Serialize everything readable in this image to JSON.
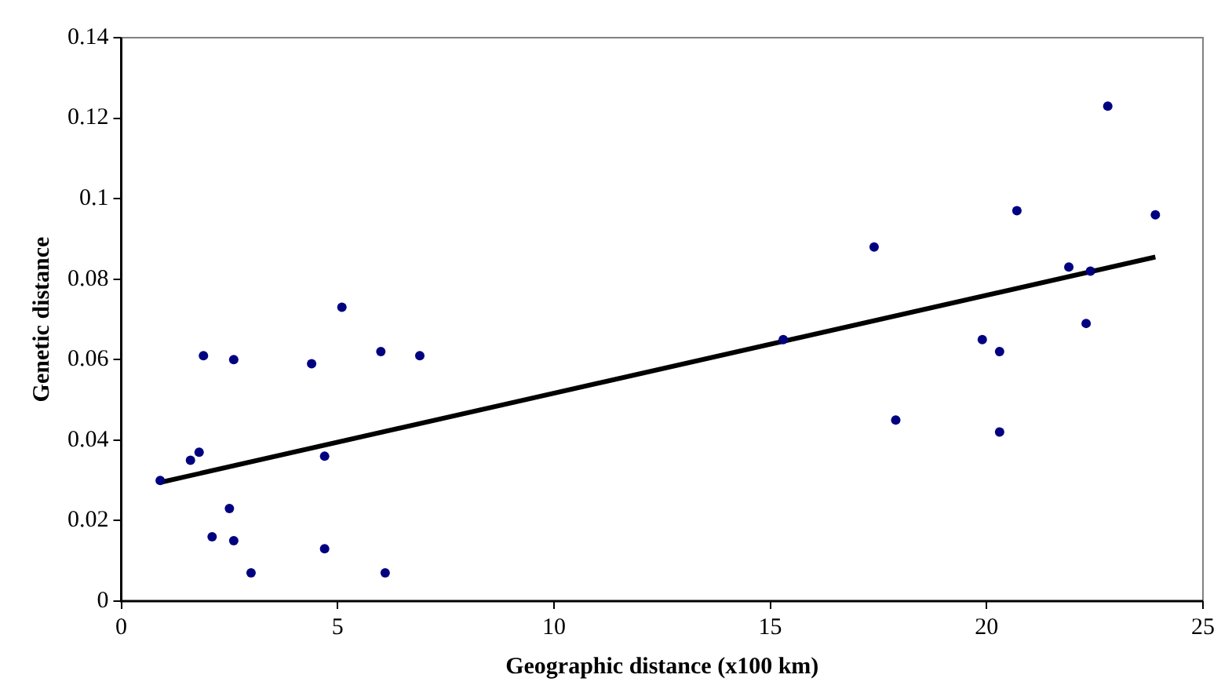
{
  "chart_data": {
    "type": "scatter",
    "xlabel": "Geographic distance (x100 km)",
    "ylabel": "Genetic distance",
    "xlim": [
      0,
      25
    ],
    "xticks": [
      0,
      5,
      10,
      15,
      20,
      25
    ],
    "ylim": [
      0,
      0.14
    ],
    "yticks": [
      0,
      0.02,
      0.04,
      0.06,
      0.08,
      0.1,
      0.12,
      0.14
    ],
    "grid": false,
    "legend": false,
    "marker": "circle",
    "series": [
      {
        "color": "#000080",
        "x": [
          0.9,
          1.6,
          1.8,
          1.9,
          2.1,
          2.5,
          2.6,
          2.6,
          3.0,
          4.4,
          4.7,
          4.7,
          5.1,
          6.0,
          6.1,
          6.9,
          15.3,
          17.4,
          17.9,
          19.9,
          20.3,
          20.3,
          20.7,
          21.9,
          22.3,
          22.4,
          22.8,
          23.9
        ],
        "values": [
          0.03,
          0.035,
          0.037,
          0.061,
          0.016,
          0.023,
          0.015,
          0.06,
          0.007,
          0.059,
          0.013,
          0.036,
          0.073,
          0.062,
          0.007,
          0.061,
          0.065,
          0.088,
          0.045,
          0.065,
          0.062,
          0.042,
          0.097,
          0.083,
          0.069,
          0.082,
          0.123,
          0.096
        ]
      },
      {
        "type": "line",
        "color": "#000000",
        "marker": "none",
        "x": [
          0.9,
          23.9
        ],
        "values": [
          0.0295,
          0.0855
        ]
      }
    ]
  }
}
